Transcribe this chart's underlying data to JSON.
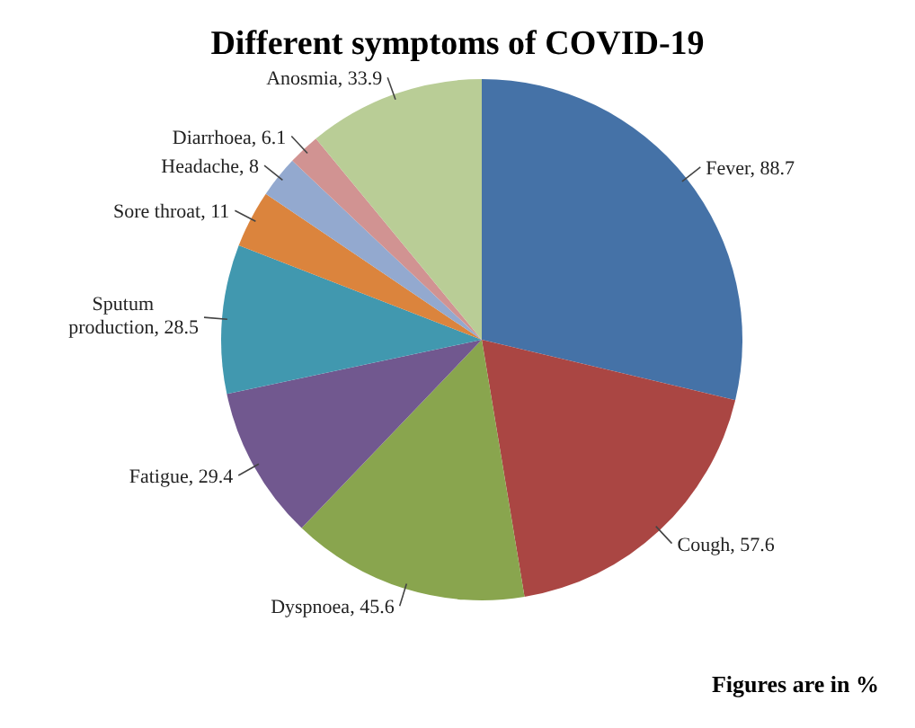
{
  "chart_data": {
    "type": "pie",
    "title": "Different symptoms of COVID-19",
    "categories": [
      "Fever",
      "Cough",
      "Dyspnoea",
      "Fatigue",
      "Sputum production",
      "Sore throat",
      "Headache",
      "Diarrhoea",
      "Anosmia"
    ],
    "values": [
      88.7,
      57.6,
      45.6,
      29.4,
      28.5,
      11,
      8,
      6.1,
      33.9
    ],
    "colors": [
      "#4572a7",
      "#aa4643",
      "#89a54e",
      "#71588f",
      "#4198af",
      "#db843d",
      "#93a9cf",
      "#d19392",
      "#b9cd96"
    ],
    "value_labels": [
      ", 88.7",
      ", 57.6",
      ", 45.6",
      ", 29.4",
      ", 28.5",
      ", 11",
      ", 8",
      ", 6.1",
      ", 33.9"
    ],
    "annotations": [
      "Figures are in %"
    ]
  }
}
